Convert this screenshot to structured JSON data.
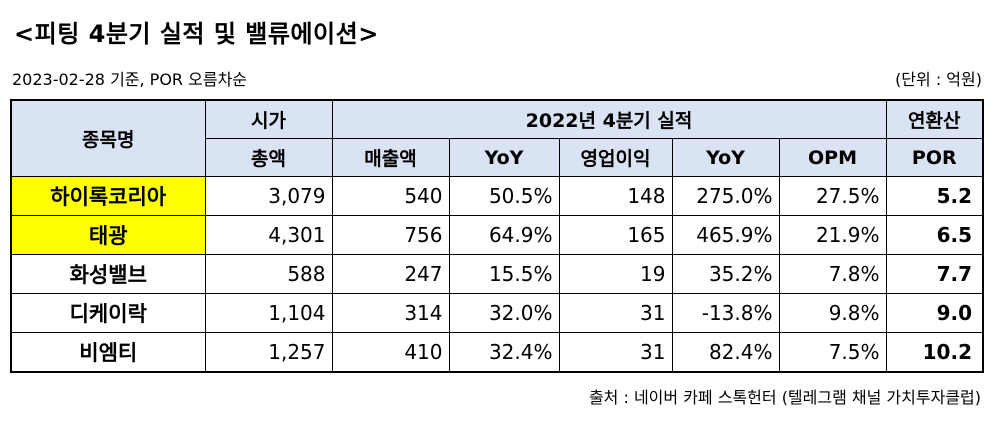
{
  "title": "<피팅 4분기 실적 및 밸류에이션>",
  "date_note": "2023-02-28 기준, POR 오름차순",
  "unit_note": "(단위 : 억원)",
  "headers": {
    "company": "종목명",
    "mcap_line1": "시가",
    "mcap_line2": "총액",
    "group": "2022년 4분기 실적",
    "sales": "매출액",
    "yoy1": "YoY",
    "op": "영업이익",
    "yoy2": "YoY",
    "opm": "OPM",
    "por_line1": "연환산",
    "por_line2": "POR"
  },
  "rows": [
    {
      "name": "하이록코리아",
      "mcap": "3,079",
      "sales": "540",
      "sales_yoy": "50.5%",
      "op": "148",
      "op_yoy": "275.0%",
      "opm": "27.5%",
      "por": "5.2",
      "highlight": true
    },
    {
      "name": "태광",
      "mcap": "4,301",
      "sales": "756",
      "sales_yoy": "64.9%",
      "op": "165",
      "op_yoy": "465.9%",
      "opm": "21.9%",
      "por": "6.5",
      "highlight": true
    },
    {
      "name": "화성밸브",
      "mcap": "588",
      "sales": "247",
      "sales_yoy": "15.5%",
      "op": "19",
      "op_yoy": "35.2%",
      "opm": "7.8%",
      "por": "7.7",
      "highlight": false
    },
    {
      "name": "디케이락",
      "mcap": "1,104",
      "sales": "314",
      "sales_yoy": "32.0%",
      "op": "31",
      "op_yoy": "-13.8%",
      "opm": "9.8%",
      "por": "9.0",
      "highlight": false
    },
    {
      "name": "비엠티",
      "mcap": "1,257",
      "sales": "410",
      "sales_yoy": "32.4%",
      "op": "31",
      "op_yoy": "82.4%",
      "opm": "7.5%",
      "por": "10.2",
      "highlight": false
    }
  ],
  "colors": {
    "header_bg": "#dae3f3",
    "highlight": "#ffff00"
  },
  "source": "출처 : 네이버 카페 스톡헌터 (텔레그램 채널 가치투자클럽)"
}
